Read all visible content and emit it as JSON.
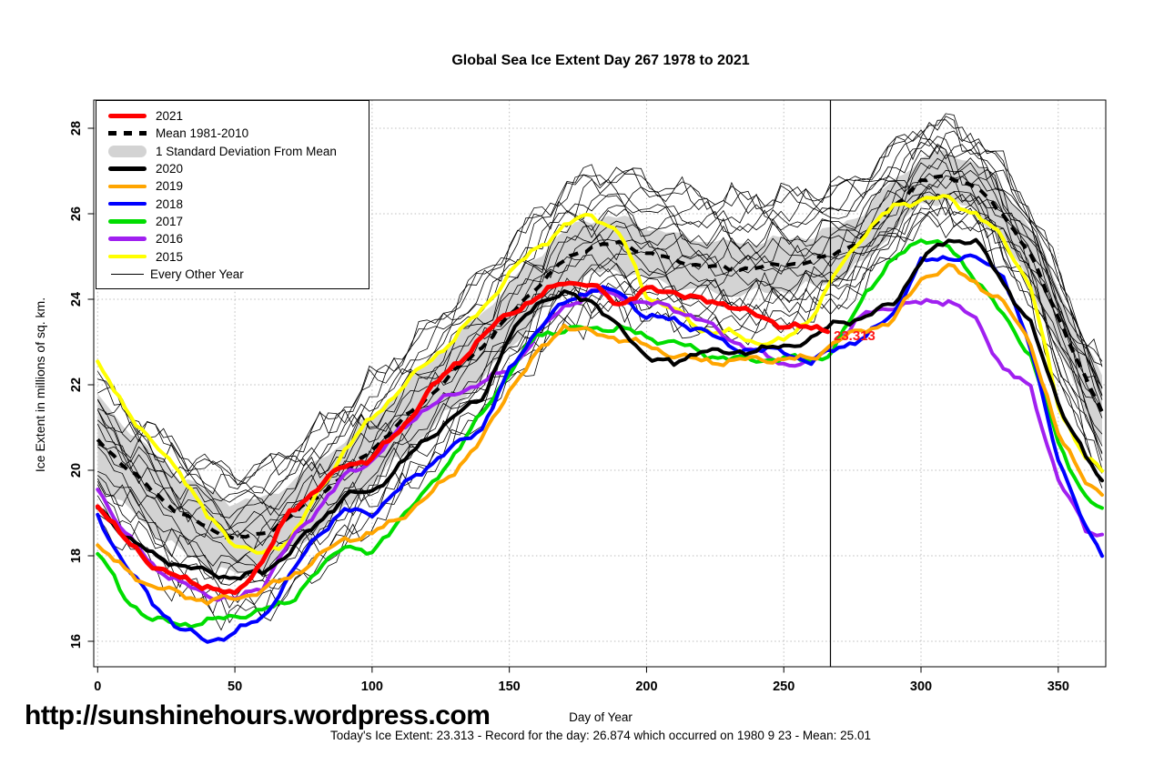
{
  "chart": {
    "title": "Global Sea Ice Extent Day 267 1978 to 2021",
    "xlabel": "Day of Year",
    "ylabel": "Ice Extent in millions of sq. km.",
    "current_value_label": "23.313"
  },
  "footer": {
    "url": "http://sunshinehours.wordpress.com",
    "stats": "Today's Ice Extent: 23.313  - Record for the day: 26.874 which occurred on 1980 9 23  - Mean: 25.01"
  },
  "chart_data": {
    "type": "line",
    "title": "Global Sea Ice Extent Day 267 1978 to 2021",
    "xlabel": "Day of Year",
    "ylabel": "Ice Extent in millions of sq. km.",
    "xlim": [
      0,
      366
    ],
    "ylim": [
      15.4,
      28.66
    ],
    "xticks": [
      0,
      50,
      100,
      150,
      200,
      250,
      300,
      350
    ],
    "yticks": [
      16,
      18,
      20,
      22,
      24,
      26,
      28
    ],
    "grid": true,
    "legend_position": "top-left",
    "marker_day": 267,
    "marker_value": 23.313,
    "record_for_day": 26.874,
    "record_year_date": "1980 9 23",
    "mean_for_day": 25.01,
    "x": [
      0,
      10,
      20,
      30,
      40,
      50,
      60,
      70,
      80,
      90,
      100,
      110,
      120,
      130,
      140,
      150,
      160,
      170,
      180,
      190,
      200,
      210,
      220,
      230,
      240,
      250,
      260,
      267,
      270,
      280,
      290,
      300,
      310,
      320,
      330,
      340,
      350,
      360,
      366
    ],
    "series": [
      {
        "name": "2021",
        "color": "#FF0000",
        "width": 5,
        "style": "solid",
        "values": [
          19.25,
          18.35,
          17.8,
          17.45,
          17.3,
          17.05,
          17.9,
          19.0,
          19.6,
          20.1,
          20.3,
          20.9,
          21.8,
          22.45,
          23.1,
          23.7,
          24.0,
          24.45,
          24.3,
          23.9,
          24.2,
          24.2,
          23.95,
          23.9,
          23.6,
          23.4,
          23.3,
          23.313,
          null,
          null,
          null,
          null,
          null,
          null,
          null,
          null,
          null,
          null,
          null
        ]
      },
      {
        "name": "Mean 1981-2010",
        "color": "#000000",
        "width": 4,
        "style": "dashed",
        "values": [
          20.7,
          20.1,
          19.5,
          19.0,
          18.65,
          18.4,
          18.5,
          18.9,
          19.4,
          19.9,
          20.5,
          21.1,
          21.7,
          22.3,
          22.9,
          23.6,
          24.3,
          24.9,
          25.25,
          25.3,
          25.1,
          24.9,
          24.8,
          24.7,
          24.75,
          24.8,
          24.9,
          25.01,
          25.1,
          25.5,
          26.2,
          26.75,
          26.9,
          26.6,
          26.0,
          25.0,
          23.6,
          22.1,
          21.4
        ]
      },
      {
        "name": "1 Standard Deviation From Mean",
        "color": "#D3D3D3",
        "style": "band",
        "sd": [
          1.0,
          0.95,
          0.9,
          0.88,
          0.85,
          0.85,
          0.82,
          0.8,
          0.8,
          0.8,
          0.8,
          0.8,
          0.8,
          0.8,
          0.78,
          0.75,
          0.7,
          0.68,
          0.65,
          0.62,
          0.6,
          0.6,
          0.6,
          0.6,
          0.6,
          0.6,
          0.6,
          0.6,
          0.6,
          0.6,
          0.58,
          0.55,
          0.55,
          0.58,
          0.62,
          0.68,
          0.72,
          0.78,
          0.8
        ]
      },
      {
        "name": "2020",
        "color": "#000000",
        "width": 4,
        "style": "solid",
        "values": [
          19.1,
          18.5,
          18.0,
          17.8,
          17.6,
          17.5,
          17.6,
          18.1,
          18.75,
          19.4,
          19.5,
          20.1,
          20.75,
          21.25,
          21.7,
          23.1,
          23.95,
          24.1,
          24.0,
          23.3,
          22.7,
          22.45,
          22.85,
          22.7,
          22.85,
          22.85,
          23.1,
          23.35,
          23.45,
          23.6,
          23.9,
          24.9,
          25.4,
          25.35,
          24.4,
          23.4,
          21.6,
          20.3,
          19.7
        ]
      },
      {
        "name": "2019",
        "color": "#FFA500",
        "width": 4,
        "style": "solid",
        "values": [
          18.25,
          17.65,
          17.3,
          17.1,
          16.95,
          17.0,
          17.2,
          17.5,
          17.95,
          18.4,
          18.5,
          18.9,
          19.35,
          20.0,
          20.7,
          21.9,
          22.7,
          23.4,
          23.2,
          23.1,
          22.9,
          22.7,
          22.55,
          22.55,
          22.6,
          22.6,
          22.6,
          22.95,
          23.05,
          23.3,
          23.5,
          24.5,
          24.75,
          24.4,
          23.9,
          23.0,
          20.8,
          19.8,
          19.4
        ]
      },
      {
        "name": "2018",
        "color": "#0000FF",
        "width": 4,
        "style": "solid",
        "values": [
          18.9,
          17.8,
          16.9,
          16.3,
          16.0,
          16.2,
          16.55,
          17.5,
          18.5,
          19.05,
          19.0,
          19.55,
          20.1,
          20.55,
          21.0,
          22.3,
          23.3,
          23.9,
          24.25,
          24.15,
          23.6,
          23.5,
          23.3,
          22.9,
          22.8,
          22.8,
          22.5,
          22.8,
          22.9,
          23.1,
          23.7,
          24.85,
          25.0,
          24.95,
          24.6,
          22.8,
          20.3,
          18.6,
          18.1
        ]
      },
      {
        "name": "2017",
        "color": "#00DD00",
        "width": 4,
        "style": "solid",
        "values": [
          18.1,
          17.0,
          16.5,
          16.4,
          16.45,
          16.6,
          16.7,
          16.95,
          17.6,
          18.3,
          18.0,
          18.9,
          19.5,
          20.4,
          21.3,
          22.3,
          23.15,
          23.3,
          23.3,
          23.35,
          23.1,
          23.0,
          22.75,
          22.6,
          22.6,
          22.6,
          22.6,
          22.7,
          23.0,
          24.2,
          24.9,
          25.45,
          25.2,
          24.5,
          23.6,
          22.7,
          20.6,
          19.4,
          19.05
        ]
      },
      {
        "name": "2016",
        "color": "#A020F0",
        "width": 4,
        "style": "solid",
        "values": [
          19.6,
          18.5,
          17.8,
          17.35,
          17.1,
          16.95,
          17.3,
          18.3,
          19.1,
          19.85,
          20.25,
          20.9,
          21.5,
          21.75,
          22.1,
          22.3,
          23.2,
          23.8,
          24.2,
          24.05,
          23.9,
          23.8,
          23.5,
          23.1,
          22.75,
          22.5,
          22.5,
          22.9,
          23.1,
          23.65,
          23.85,
          23.9,
          24.0,
          23.5,
          22.4,
          21.9,
          19.8,
          18.6,
          18.5
        ]
      },
      {
        "name": "2015",
        "color": "#FFFF00",
        "width": 4,
        "style": "solid",
        "values": [
          22.45,
          21.5,
          20.6,
          20.0,
          18.9,
          18.3,
          18.0,
          18.4,
          19.4,
          20.5,
          21.2,
          21.9,
          22.5,
          23.1,
          23.75,
          24.6,
          25.2,
          25.7,
          26.0,
          25.55,
          24.1,
          23.75,
          23.3,
          23.2,
          23.0,
          23.0,
          23.6,
          24.35,
          24.7,
          25.6,
          26.15,
          26.35,
          26.35,
          26.0,
          25.4,
          24.3,
          21.5,
          20.3,
          19.95
        ]
      },
      {
        "name": "Every Other Year",
        "color": "#000000",
        "width": 0.8,
        "style": "thin-multi",
        "count": 21,
        "offset_range": [
          -1.6,
          1.8
        ]
      }
    ]
  }
}
